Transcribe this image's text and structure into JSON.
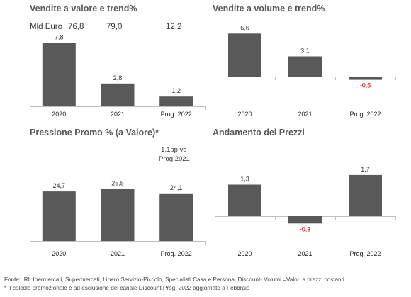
{
  "chart_data": [
    {
      "type": "bar",
      "title": "Vendite a valore e trend%",
      "unit_label": "Mld Euro",
      "totals": [
        "76,8",
        "79,0",
        "12,2"
      ],
      "categories": [
        "2020",
        "2021",
        "Prog. 2022"
      ],
      "values": [
        7.8,
        2.8,
        1.2
      ],
      "labels": [
        "7,8",
        "2,8",
        "1,2"
      ]
    },
    {
      "type": "bar",
      "title": "Vendite a volume e trend%",
      "categories": [
        "2020",
        "2021",
        "Prog. 2022"
      ],
      "values": [
        6.6,
        3.1,
        -0.5
      ],
      "labels": [
        "6,6",
        "3,1",
        "-0,5"
      ]
    },
    {
      "type": "bar",
      "title": "Pressione Promo % (a Valore)*",
      "annotation": [
        "-1,1pp vs",
        "Prog 2021"
      ],
      "categories": [
        "2020",
        "2021",
        "Prog. 2022"
      ],
      "values": [
        24.7,
        25.5,
        24.1
      ],
      "labels": [
        "24,7",
        "25,5",
        "24,1"
      ]
    },
    {
      "type": "bar",
      "title": "Andamento dei Prezzi",
      "categories": [
        "2020",
        "2021",
        "Prog. 2022"
      ],
      "values": [
        1.3,
        -0.3,
        1.7
      ],
      "labels": [
        "1,3",
        "-0,3",
        "1,7"
      ]
    }
  ],
  "colors": {
    "bar": "#595959",
    "axis": "#bfbfbf",
    "negative_label": "#c00000"
  },
  "footer": [
    "Fonte: IRI. Ipermercati, Supermercati, Libero Servizio-Piccolo, Specialisti Casa e Persona, Discount- Volumi =Valori a prezzi costanti.",
    "* Il calcolo promozionale è ad esclusione del canale Discount.Prog. 2022 aggiornato a Febbraio"
  ]
}
